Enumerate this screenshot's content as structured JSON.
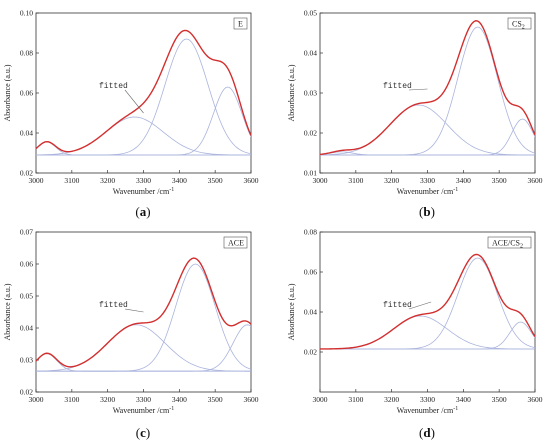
{
  "chart_data": [
    {
      "id": "a",
      "type": "line",
      "legend": "E",
      "label": "(a)",
      "xlabel": "Wavenumber /cm",
      "xlabel_sup": "-1",
      "ylabel": "Absorbance (a.u.)",
      "annotation": "fitted",
      "xlim": [
        3000,
        3600
      ],
      "ylim": [
        0.02,
        0.1
      ],
      "x_ticks": [
        "3000",
        "3100",
        "3200",
        "3300",
        "3400",
        "3500",
        "3600"
      ],
      "y_ticks": [
        "0.02",
        "0.04",
        "0.06",
        "0.08",
        "0.10"
      ],
      "y_tick_values": [
        0.02,
        0.04,
        0.06,
        0.08,
        0.1
      ],
      "baseline": 0.029,
      "components": [
        {
          "center": 3030,
          "amp": 0.0065,
          "width": 25
        },
        {
          "center": 3275,
          "amp": 0.019,
          "width": 80
        },
        {
          "center": 3420,
          "amp": 0.058,
          "width": 60
        },
        {
          "center": 3535,
          "amp": 0.034,
          "width": 40
        }
      ],
      "annot_target": [
        3300,
        0.05
      ]
    },
    {
      "id": "b",
      "type": "line",
      "legend": "CS",
      "legend_sub": "2",
      "label": "(b)",
      "xlabel": "Wavenumber /cm",
      "xlabel_sup": "-1",
      "ylabel": "Absorbance (a.u.)",
      "annotation": "fitted",
      "xlim": [
        3000,
        3600
      ],
      "ylim": [
        0.01,
        0.05
      ],
      "x_ticks": [
        "3000",
        "3100",
        "3200",
        "3300",
        "3400",
        "3500",
        "3600"
      ],
      "y_ticks": [
        "0.01",
        "0.02",
        "0.03",
        "0.04",
        "0.05"
      ],
      "y_tick_values": [
        0.01,
        0.02,
        0.03,
        0.04,
        0.05
      ],
      "baseline": 0.0145,
      "components": [
        {
          "center": 3060,
          "amp": 0.0008,
          "width": 30
        },
        {
          "center": 3275,
          "amp": 0.0125,
          "width": 80
        },
        {
          "center": 3440,
          "amp": 0.032,
          "width": 55
        },
        {
          "center": 3565,
          "amp": 0.009,
          "width": 30
        }
      ],
      "annot_target": [
        3300,
        0.031
      ]
    },
    {
      "id": "c",
      "type": "line",
      "legend": "ACE",
      "label": "(c)",
      "xlabel": "Wavenumber /cm",
      "xlabel_sup": "-1",
      "ylabel": "Absorbance (a.u.)",
      "annotation": "fitted",
      "xlim": [
        3000,
        3600
      ],
      "ylim": [
        0.02,
        0.07
      ],
      "x_ticks": [
        "3000",
        "3100",
        "3200",
        "3300",
        "3400",
        "3500",
        "3600"
      ],
      "y_ticks": [
        "0.02",
        "0.03",
        "0.04",
        "0.05",
        "0.06",
        "0.07"
      ],
      "y_tick_values": [
        0.02,
        0.03,
        0.04,
        0.05,
        0.06,
        0.07
      ],
      "baseline": 0.0265,
      "components": [
        {
          "center": 3030,
          "amp": 0.0055,
          "width": 28
        },
        {
          "center": 3280,
          "amp": 0.0145,
          "width": 80
        },
        {
          "center": 3445,
          "amp": 0.0335,
          "width": 55
        },
        {
          "center": 3590,
          "amp": 0.0145,
          "width": 40
        }
      ],
      "annot_target": [
        3300,
        0.045
      ]
    },
    {
      "id": "d",
      "type": "line",
      "legend": "ACE/CS",
      "legend_sub": "2",
      "label": "(d)",
      "xlabel": "Wavenumber /cm",
      "xlabel_sup": "-1",
      "ylabel": "Absorbance (a.u.)",
      "annotation": "fitted",
      "xlim": [
        3000,
        3600
      ],
      "ylim": [
        0.0,
        0.08
      ],
      "x_ticks": [
        "3000",
        "3100",
        "3200",
        "3300",
        "3400",
        "3500",
        "3600"
      ],
      "y_ticks": [
        "0.02",
        "0.04",
        "0.06",
        "0.08"
      ],
      "y_tick_values": [
        0.02,
        0.04,
        0.06,
        0.08
      ],
      "baseline": 0.0215,
      "components": [
        {
          "center": 3280,
          "amp": 0.0165,
          "width": 75
        },
        {
          "center": 3440,
          "amp": 0.0455,
          "width": 55
        },
        {
          "center": 3560,
          "amp": 0.0135,
          "width": 30
        }
      ],
      "annot_target": [
        3310,
        0.045
      ]
    }
  ],
  "colors": {
    "envelope": "#d32f2f",
    "components": "#aab4dd"
  }
}
